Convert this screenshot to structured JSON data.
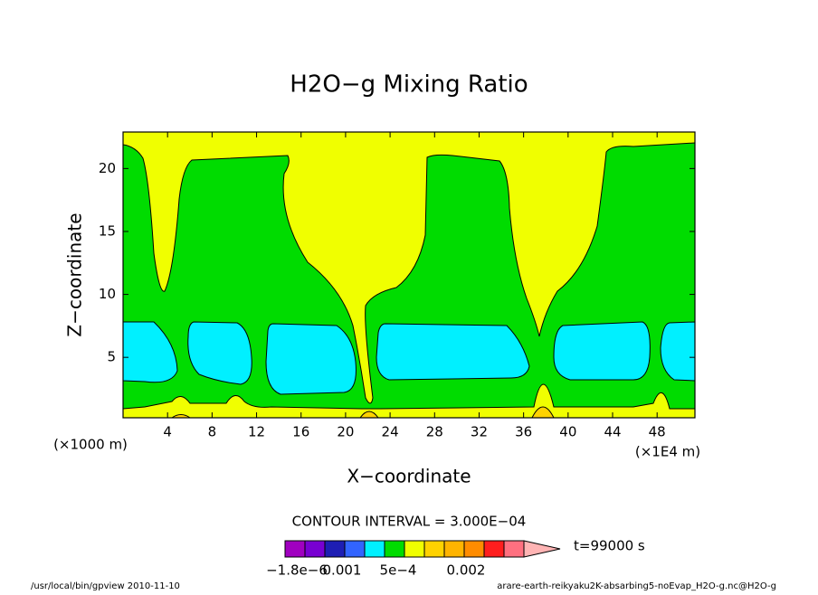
{
  "chart_data": {
    "type": "contour",
    "title": "H2O−g Mixing Ratio",
    "x_label": "X−coordinate",
    "y_label": "Z−coordinate",
    "x_unit": "(×1E4 m)",
    "y_unit": "(×1000 m)",
    "xlim": [
      0,
      51.4
    ],
    "ylim": [
      0.2,
      22.9
    ],
    "xticks": [
      4,
      8,
      12,
      16,
      20,
      24,
      28,
      32,
      36,
      40,
      44,
      48
    ],
    "yticks": [
      5,
      10,
      15,
      20
    ],
    "contour_interval": "CONTOUR INTERVAL = 3.000E−04",
    "time_label": "t=99000 s",
    "colorbar": {
      "colors": [
        "#a000c0",
        "#7800d2",
        "#1e1eb4",
        "#3264ff",
        "#00f0ff",
        "#00dc00",
        "#f0ff00",
        "#ffd200",
        "#ffb400",
        "#ff8c00",
        "#ff1e1e",
        "#ff7080",
        "#ffb4b4"
      ],
      "labels": [
        "−1.8e−6",
        "0.001",
        "5e−4",
        "0.002"
      ]
    },
    "footer_left": "/usr/local/bin/gpview   2010-11-10",
    "footer_right": "arare-earth-reikyaku2K-absarbing5-noEvap_H2O-g.nc@H2O-g"
  }
}
